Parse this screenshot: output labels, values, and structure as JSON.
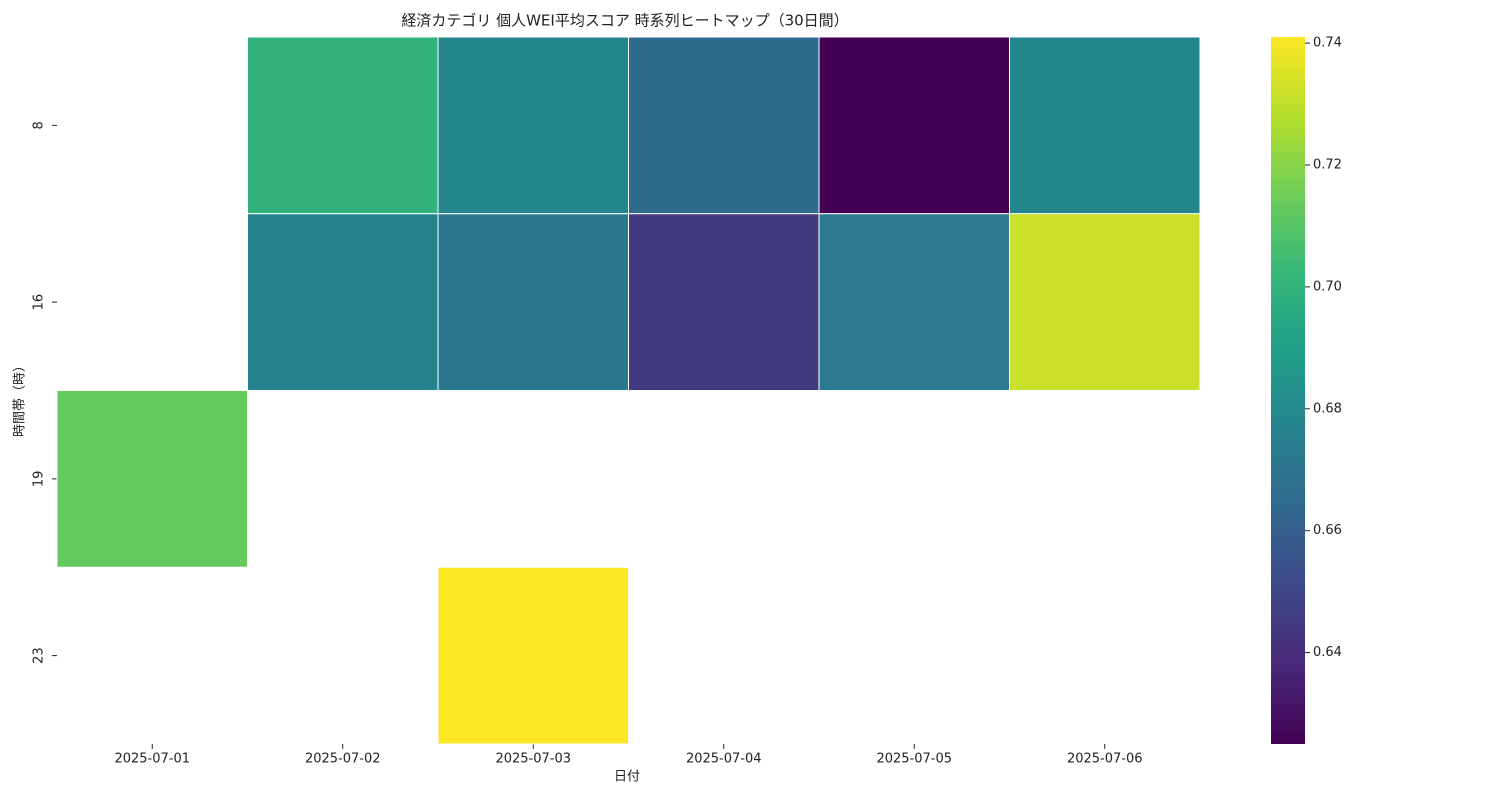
{
  "chart_data": {
    "type": "heatmap",
    "title": "経済カテゴリ 個人WEI平均スコア 時系列ヒートマップ（30日間）",
    "x_label": "日付",
    "y_label": "時間帯（時）",
    "categories": [
      "2025-07-01",
      "2025-07-02",
      "2025-07-03",
      "2025-07-04",
      "2025-07-05",
      "2025-07-06"
    ],
    "rows": [
      "8",
      "16",
      "19",
      "23"
    ],
    "values": [
      [
        null,
        0.7,
        0.678,
        0.665,
        0.625,
        0.678
      ],
      [
        null,
        0.677,
        0.671,
        0.645,
        0.672,
        0.732
      ],
      [
        0.713,
        null,
        null,
        null,
        null,
        null
      ],
      [
        null,
        null,
        0.741,
        null,
        null,
        null
      ]
    ],
    "colormap": "viridis",
    "clim": [
      0.625,
      0.741
    ],
    "cticks": [
      0.64,
      0.66,
      0.68,
      {
        "value": 0.7,
        "label": "0.70"
      },
      0.72,
      0.74
    ]
  }
}
